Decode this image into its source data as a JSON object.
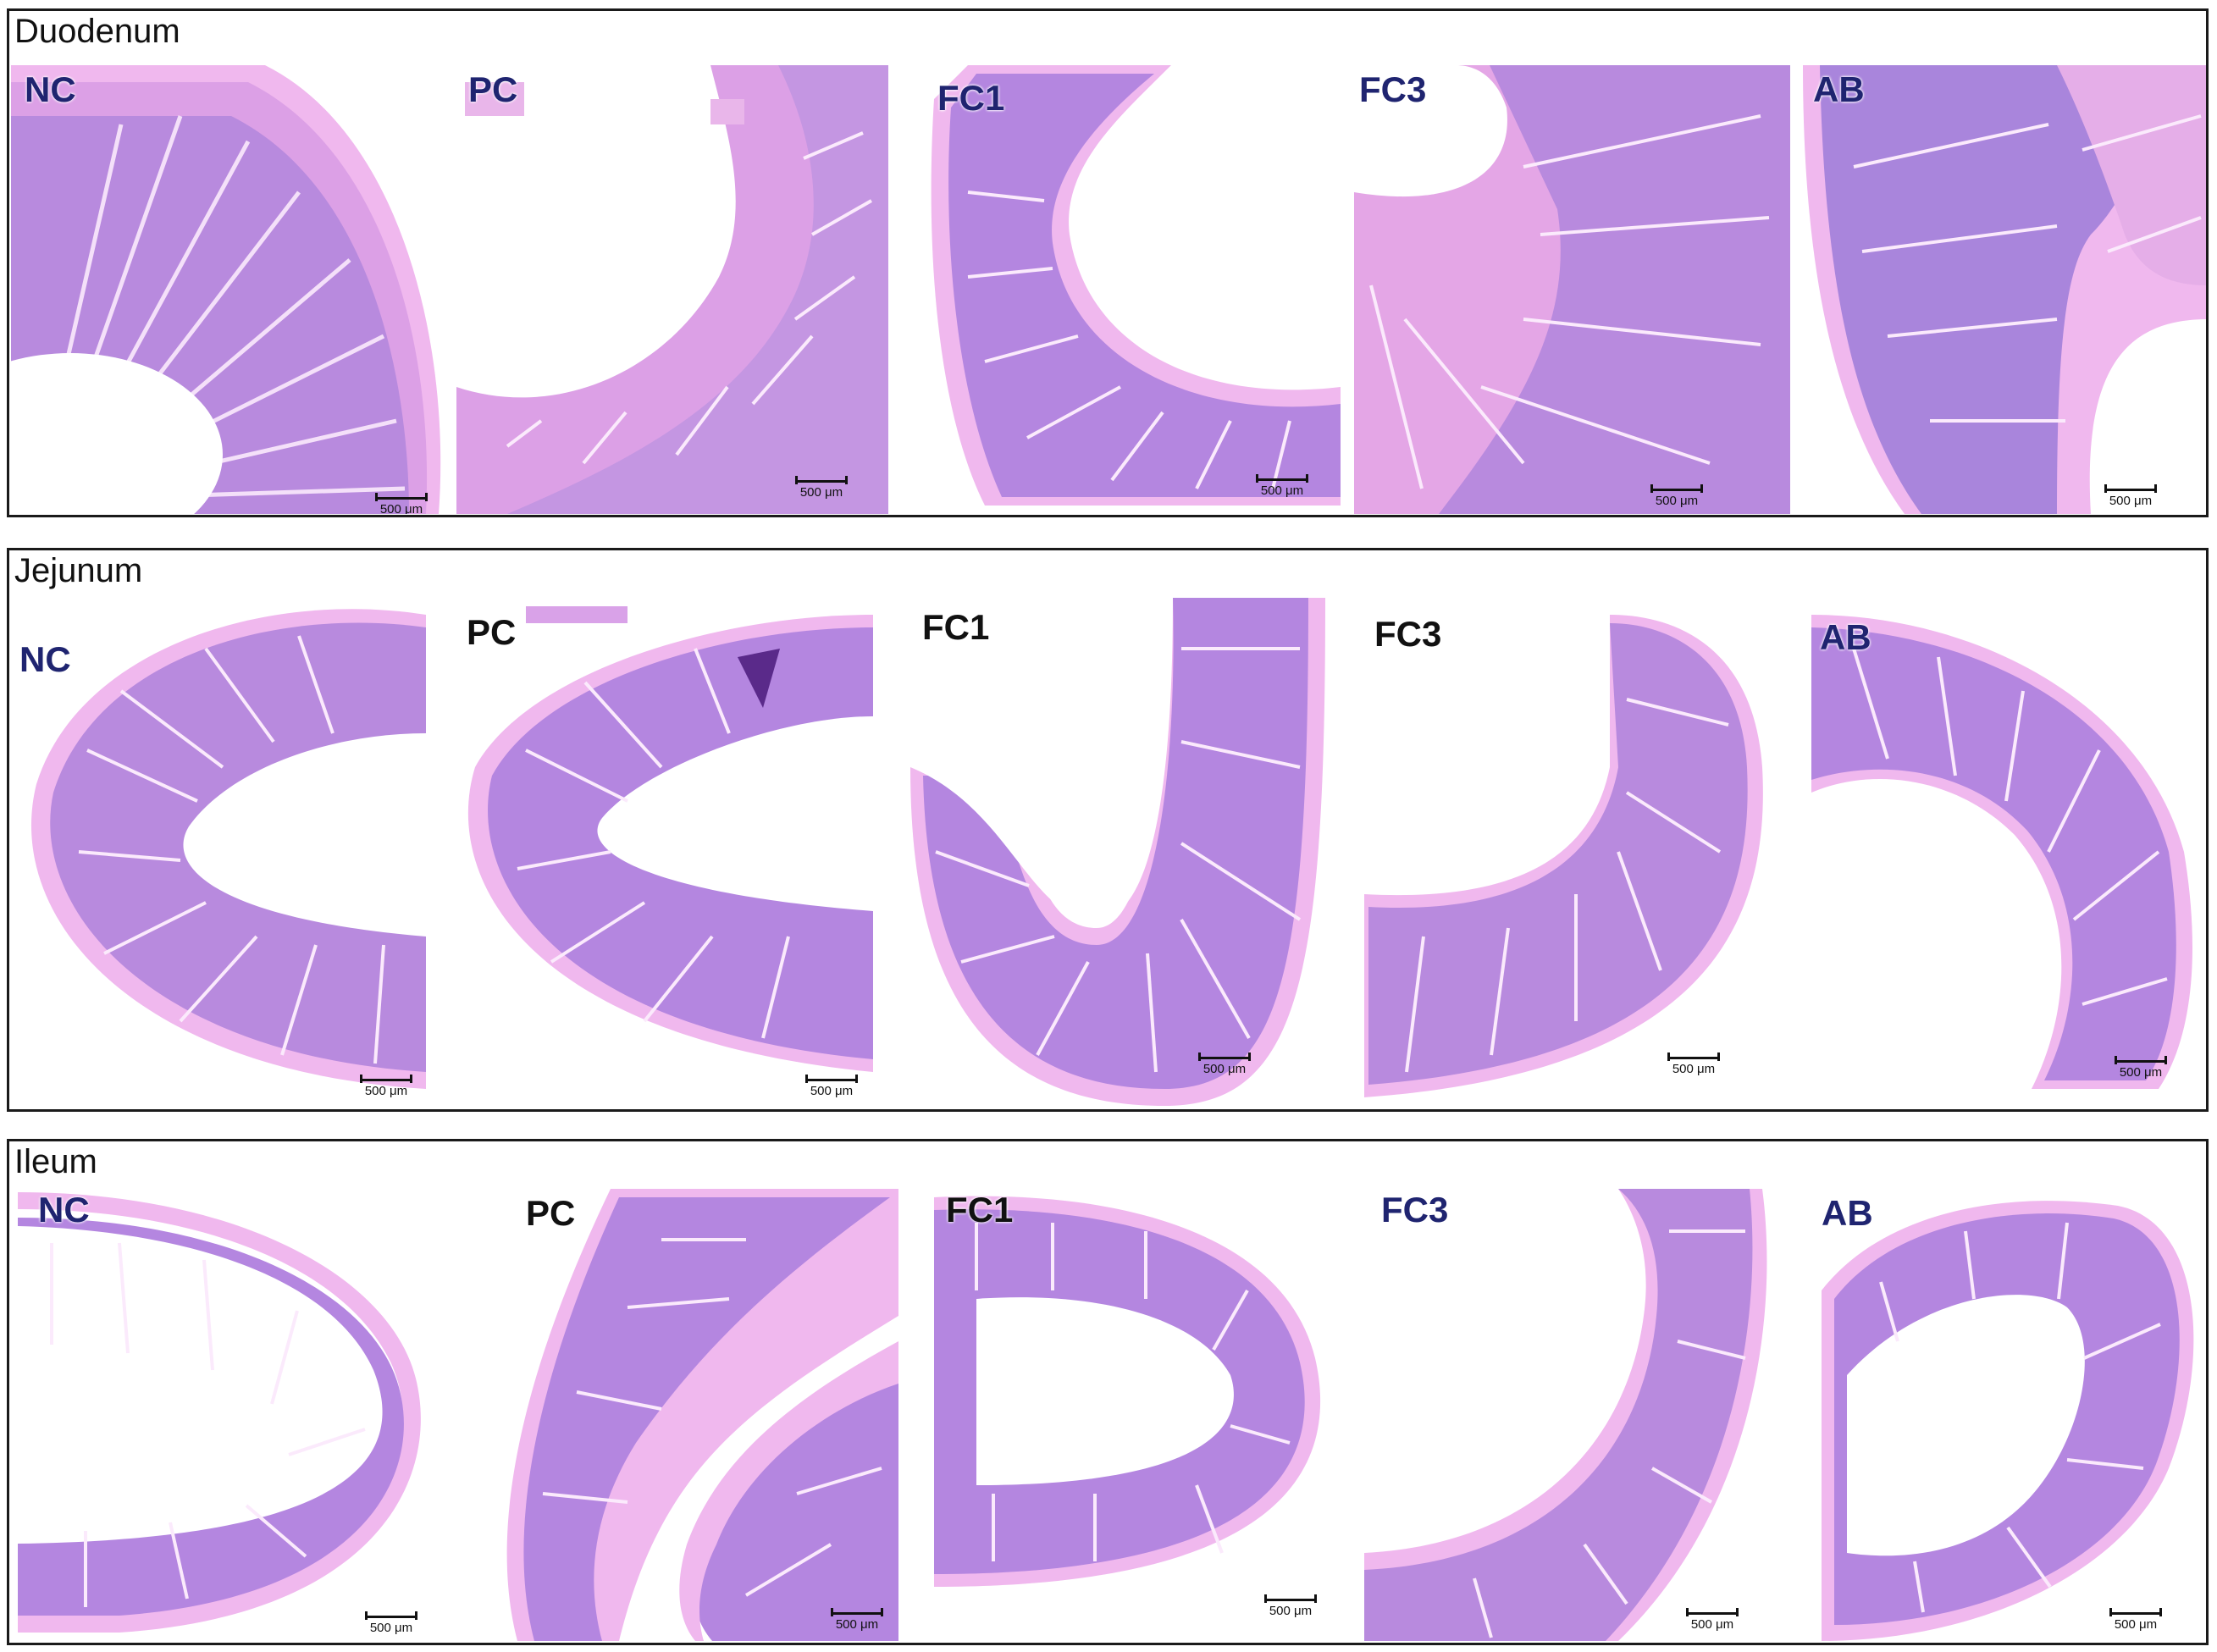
{
  "figure": {
    "colors": {
      "label_color": "#1f2470",
      "tissue_light": "#e4a6e6",
      "tissue_mid": "#b486e0",
      "tissue_dark": "#8a5ecf",
      "serosa": "#f0b8ee"
    },
    "rows": [
      {
        "title": "Duodenum",
        "panels": [
          {
            "label": "NC",
            "scale": "500 μm"
          },
          {
            "label": "PC",
            "scale": "500 μm"
          },
          {
            "label": "FC1",
            "scale": "500 μm"
          },
          {
            "label": "FC3",
            "scale": "500 μm"
          },
          {
            "label": "AB",
            "scale": "500 μm"
          }
        ]
      },
      {
        "title": "Jejunum",
        "panels": [
          {
            "label": "NC",
            "scale": "500 μm"
          },
          {
            "label": "PC",
            "scale": "500 μm"
          },
          {
            "label": "FC1",
            "scale": "500 μm"
          },
          {
            "label": "FC3",
            "scale": "500 μm"
          },
          {
            "label": "AB",
            "scale": "500 μm"
          }
        ]
      },
      {
        "title": "Ileum",
        "panels": [
          {
            "label": "NC",
            "scale": "500 μm"
          },
          {
            "label": "PC",
            "scale": "500 μm"
          },
          {
            "label": "FC1",
            "scale": "500 μm"
          },
          {
            "label": "FC3",
            "scale": "500 μm"
          },
          {
            "label": "AB",
            "scale": "500 μm"
          }
        ]
      }
    ]
  }
}
